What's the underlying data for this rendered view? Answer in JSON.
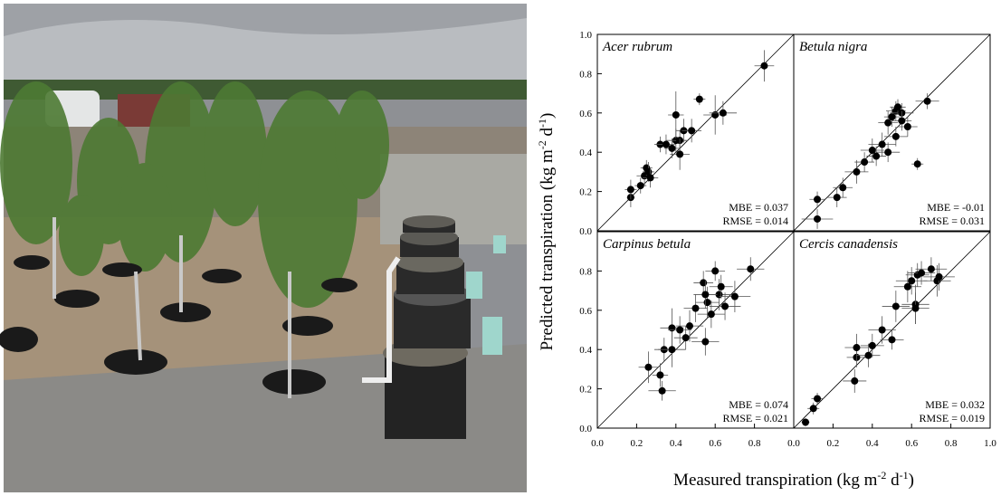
{
  "figure": {
    "xlabel": [
      "Measured transpiration (kg m",
      "-2",
      " d",
      "-1",
      ")"
    ],
    "ylabel": [
      "Predicted transpiration (kg m",
      "-2",
      " d",
      "-1",
      ")"
    ]
  },
  "chart_data": [
    {
      "type": "scatter",
      "title": "Acer rubrum",
      "annotations": [
        "MBE = 0.037",
        "RMSE = 0.014"
      ],
      "x": [
        0.17,
        0.17,
        0.22,
        0.24,
        0.25,
        0.26,
        0.27,
        0.32,
        0.35,
        0.38,
        0.4,
        0.4,
        0.42,
        0.42,
        0.44,
        0.48,
        0.52,
        0.6,
        0.64,
        0.85
      ],
      "y": [
        0.17,
        0.21,
        0.23,
        0.28,
        0.32,
        0.3,
        0.27,
        0.44,
        0.44,
        0.42,
        0.46,
        0.59,
        0.46,
        0.39,
        0.51,
        0.51,
        0.67,
        0.59,
        0.6,
        0.84
      ],
      "xerr": [
        0.02,
        0.03,
        0.03,
        0.04,
        0.03,
        0.03,
        0.04,
        0.03,
        0.05,
        0.04,
        0.05,
        0.04,
        0.04,
        0.05,
        0.04,
        0.05,
        0.03,
        0.06,
        0.07,
        0.05
      ],
      "yerr": [
        0.05,
        0.05,
        0.04,
        0.05,
        0.04,
        0.05,
        0.05,
        0.04,
        0.05,
        0.05,
        0.06,
        0.12,
        0.05,
        0.08,
        0.06,
        0.06,
        0.03,
        0.1,
        0.06,
        0.08
      ],
      "color": "#000000",
      "xlim": [
        0,
        1
      ],
      "ylim": [
        0,
        1
      ],
      "xticks": [],
      "yticks": [
        {
          "value": 0,
          "label": "0.0"
        },
        {
          "value": 0.2,
          "label": "0.2"
        },
        {
          "value": 0.4,
          "label": "0.4"
        },
        {
          "value": 0.6,
          "label": "0.6"
        },
        {
          "value": 0.8,
          "label": "0.8"
        },
        {
          "value": 1,
          "label": "1.0"
        }
      ]
    },
    {
      "type": "scatter",
      "title": "Betula nigra",
      "annotations": [
        "MBE = -0.01",
        "RMSE = 0.031"
      ],
      "x": [
        0.12,
        0.12,
        0.22,
        0.25,
        0.32,
        0.36,
        0.4,
        0.42,
        0.45,
        0.48,
        0.48,
        0.5,
        0.52,
        0.53,
        0.55,
        0.58,
        0.63,
        0.68,
        0.52,
        0.55
      ],
      "y": [
        0.16,
        0.06,
        0.17,
        0.22,
        0.3,
        0.35,
        0.41,
        0.38,
        0.44,
        0.55,
        0.4,
        0.58,
        0.61,
        0.63,
        0.6,
        0.53,
        0.34,
        0.66,
        0.48,
        0.56
      ],
      "xerr": [
        0.04,
        0.08,
        0.05,
        0.05,
        0.06,
        0.05,
        0.06,
        0.05,
        0.07,
        0.05,
        0.06,
        0.04,
        0.05,
        0.04,
        0.06,
        0.05,
        0.03,
        0.06,
        0.06,
        0.05
      ],
      "yerr": [
        0.04,
        0.05,
        0.05,
        0.05,
        0.06,
        0.05,
        0.06,
        0.05,
        0.06,
        0.06,
        0.05,
        0.05,
        0.05,
        0.04,
        0.05,
        0.05,
        0.03,
        0.04,
        0.05,
        0.05
      ],
      "color": "#000000",
      "xlim": [
        0,
        1
      ],
      "ylim": [
        0,
        1
      ],
      "xticks": [],
      "yticks": []
    },
    {
      "type": "scatter",
      "title": "Carpinus betula",
      "annotations": [
        "MBE = 0.074",
        "RMSE = 0.021"
      ],
      "x": [
        0.26,
        0.32,
        0.33,
        0.34,
        0.38,
        0.38,
        0.42,
        0.45,
        0.47,
        0.5,
        0.54,
        0.55,
        0.56,
        0.58,
        0.6,
        0.62,
        0.63,
        0.65,
        0.7,
        0.78,
        0.55
      ],
      "y": [
        0.31,
        0.27,
        0.19,
        0.4,
        0.51,
        0.4,
        0.5,
        0.46,
        0.52,
        0.61,
        0.74,
        0.44,
        0.64,
        0.58,
        0.8,
        0.68,
        0.72,
        0.62,
        0.67,
        0.81,
        0.68
      ],
      "xerr": [
        0.05,
        0.04,
        0.07,
        0.05,
        0.06,
        0.07,
        0.06,
        0.06,
        0.07,
        0.06,
        0.05,
        0.07,
        0.06,
        0.07,
        0.05,
        0.07,
        0.06,
        0.08,
        0.08,
        0.07,
        0.06
      ],
      "yerr": [
        0.08,
        0.06,
        0.05,
        0.06,
        0.1,
        0.09,
        0.07,
        0.06,
        0.08,
        0.07,
        0.06,
        0.07,
        0.08,
        0.07,
        0.05,
        0.08,
        0.06,
        0.07,
        0.08,
        0.06,
        0.07
      ],
      "color": "#000000",
      "xlim": [
        0,
        1
      ],
      "ylim": [
        0,
        1
      ],
      "xticks": [
        {
          "value": 0,
          "label": "0.0"
        },
        {
          "value": 0.2,
          "label": "0.2"
        },
        {
          "value": 0.4,
          "label": "0.4"
        },
        {
          "value": 0.6,
          "label": "0.6"
        },
        {
          "value": 0.8,
          "label": "0.8"
        }
      ],
      "yticks": [
        {
          "value": 0,
          "label": "0.0"
        },
        {
          "value": 0.2,
          "label": "0.2"
        },
        {
          "value": 0.4,
          "label": "0.4"
        },
        {
          "value": 0.6,
          "label": "0.6"
        },
        {
          "value": 0.8,
          "label": "0.8"
        }
      ]
    },
    {
      "type": "scatter",
      "title": "Cercis canadensis",
      "annotations": [
        "MBE = 0.032",
        "RMSE = 0.019"
      ],
      "x": [
        0.06,
        0.1,
        0.12,
        0.31,
        0.32,
        0.32,
        0.38,
        0.4,
        0.45,
        0.5,
        0.52,
        0.6,
        0.62,
        0.62,
        0.63,
        0.65,
        0.7,
        0.73,
        0.74,
        0.58
      ],
      "y": [
        0.03,
        0.1,
        0.15,
        0.24,
        0.36,
        0.41,
        0.37,
        0.42,
        0.5,
        0.45,
        0.62,
        0.75,
        0.63,
        0.61,
        0.78,
        0.79,
        0.81,
        0.75,
        0.77,
        0.72
      ],
      "xerr": [
        0.02,
        0.03,
        0.03,
        0.06,
        0.05,
        0.06,
        0.06,
        0.06,
        0.07,
        0.06,
        0.07,
        0.08,
        0.07,
        0.07,
        0.06,
        0.07,
        0.08,
        0.07,
        0.08,
        0.07
      ],
      "yerr": [
        0.02,
        0.03,
        0.03,
        0.06,
        0.05,
        0.07,
        0.06,
        0.06,
        0.07,
        0.05,
        0.08,
        0.07,
        0.1,
        0.08,
        0.06,
        0.06,
        0.06,
        0.08,
        0.07,
        0.08
      ],
      "color": "#000000",
      "xlim": [
        0,
        1
      ],
      "ylim": [
        0,
        1
      ],
      "xticks": [
        {
          "value": 0,
          "label": "0.0"
        },
        {
          "value": 0.2,
          "label": "0.2"
        },
        {
          "value": 0.4,
          "label": "0.4"
        },
        {
          "value": 0.6,
          "label": "0.6"
        },
        {
          "value": 0.8,
          "label": "0.8"
        },
        {
          "value": 1,
          "label": "1.0"
        }
      ],
      "yticks": []
    }
  ]
}
